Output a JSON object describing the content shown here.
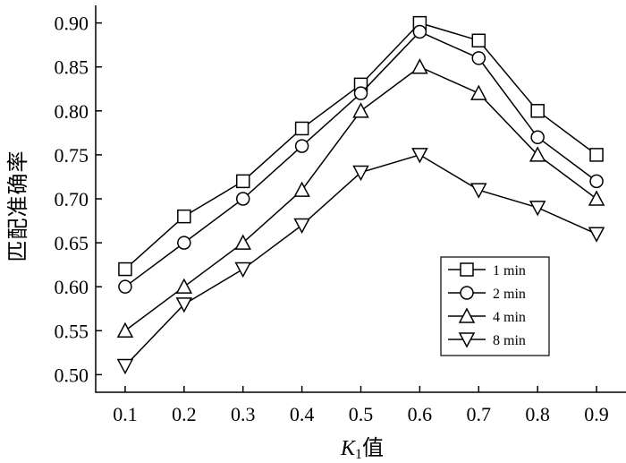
{
  "chart_data": {
    "type": "line",
    "title": "",
    "xlabel_main": "K",
    "xlabel_sub": "1",
    "xlabel_suffix": "值",
    "ylabel": "匹配准确率",
    "x": [
      0.1,
      0.2,
      0.3,
      0.4,
      0.5,
      0.6,
      0.7,
      0.8,
      0.9
    ],
    "x_tick_labels": [
      "0.1",
      "0.2",
      "0.3",
      "0.4",
      "0.5",
      "0.6",
      "0.7",
      "0.8",
      "0.9"
    ],
    "y_ticks": [
      0.5,
      0.55,
      0.6,
      0.65,
      0.7,
      0.75,
      0.8,
      0.85,
      0.9
    ],
    "y_tick_labels": [
      "0.50",
      "0.55",
      "0.60",
      "0.65",
      "0.70",
      "0.75",
      "0.80",
      "0.85",
      "0.90"
    ],
    "xlim": [
      0.05,
      0.95
    ],
    "ylim": [
      0.48,
      0.92
    ],
    "grid": false,
    "legend_position": "center-right",
    "series": [
      {
        "name": "1 min",
        "marker": "square",
        "values": [
          0.62,
          0.68,
          0.72,
          0.78,
          0.83,
          0.9,
          0.88,
          0.8,
          0.75
        ]
      },
      {
        "name": "2 min",
        "marker": "circle",
        "values": [
          0.6,
          0.65,
          0.7,
          0.76,
          0.82,
          0.89,
          0.86,
          0.77,
          0.72
        ]
      },
      {
        "name": "4 min",
        "marker": "triangle-up",
        "values": [
          0.55,
          0.6,
          0.65,
          0.71,
          0.8,
          0.85,
          0.82,
          0.75,
          0.7
        ]
      },
      {
        "name": "8 min",
        "marker": "triangle-down",
        "values": [
          0.51,
          0.58,
          0.62,
          0.67,
          0.73,
          0.75,
          0.71,
          0.69,
          0.66
        ]
      }
    ]
  }
}
